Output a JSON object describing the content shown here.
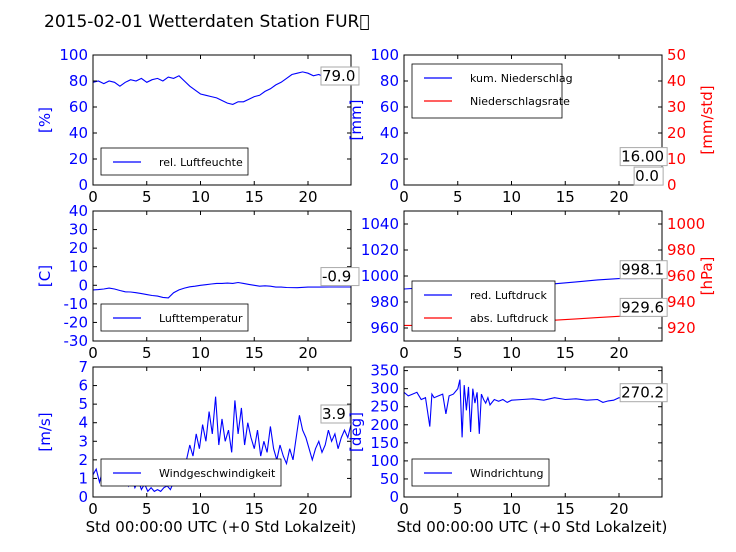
{
  "title": "2015-02-01 Wetterdaten Station FUR\u0000",
  "xlabel": "Std 00:00:00 UTC (+0 Std Lokalzeit)",
  "chart_data": [
    {
      "type": "line",
      "ylabel": "[%]",
      "xlim": [
        0,
        24
      ],
      "ylim": [
        0,
        100
      ],
      "xticks": [
        0,
        5,
        10,
        15,
        20
      ],
      "yticks": [
        0,
        20,
        40,
        60,
        80,
        100
      ],
      "legend": "lower-left",
      "series": [
        {
          "name": "rel. Luftfeuchte",
          "axis": "left",
          "color": "#0000ff",
          "x": [
            0,
            0.5,
            1,
            1.5,
            2,
            2.5,
            3,
            3.5,
            4,
            4.5,
            5,
            5.5,
            6,
            6.5,
            7,
            7.5,
            8,
            8.5,
            9,
            9.5,
            10,
            10.5,
            11,
            11.5,
            12,
            12.5,
            13,
            13.5,
            14,
            14.5,
            15,
            15.5,
            16,
            16.5,
            17,
            17.5,
            18,
            18.5,
            19,
            19.5,
            20,
            20.5,
            21,
            21.5,
            22,
            22.5,
            23,
            23.5,
            24
          ],
          "y": [
            79,
            80,
            78,
            80,
            79,
            76,
            79,
            81,
            80,
            82,
            79,
            81,
            82,
            80,
            83,
            82,
            84,
            80,
            76,
            73,
            70,
            69,
            68,
            67,
            65,
            63,
            62,
            64,
            64,
            66,
            68,
            69,
            72,
            74,
            77,
            79,
            82,
            85,
            86,
            87,
            86,
            84,
            85,
            83,
            82,
            81,
            80,
            79,
            79
          ]
        }
      ],
      "annotations": [
        {
          "text": "79.0",
          "x": 21.3,
          "y": 80
        }
      ]
    },
    {
      "type": "line",
      "ylabel": "[mm]",
      "ylabel_right": "[mm/std]",
      "xlim": [
        0,
        24
      ],
      "ylim": [
        0,
        100
      ],
      "ylim_right": [
        0,
        50
      ],
      "xticks": [
        0,
        5,
        10,
        15,
        20
      ],
      "yticks": [
        0,
        20,
        40,
        60,
        80,
        100
      ],
      "yticks_right": [
        0,
        10,
        20,
        30,
        40,
        50
      ],
      "legend": "top-left",
      "series": [
        {
          "name": "kum. Niederschlag",
          "axis": "left",
          "color": "#0000ff",
          "x": [
            0,
            24
          ],
          "y": [
            0,
            0
          ]
        },
        {
          "name": "Niederschlagsrate",
          "axis": "right",
          "color": "#ff0000",
          "x": [
            0,
            24
          ],
          "y": [
            0,
            0
          ]
        }
      ],
      "annotations": [
        {
          "text": "16.00",
          "x": 20.2,
          "y": 18
        },
        {
          "text": "0.0",
          "x": 21.5,
          "y": 3
        }
      ]
    },
    {
      "type": "line",
      "ylabel": "[C]",
      "xlim": [
        0,
        24
      ],
      "ylim": [
        -30,
        40
      ],
      "xticks": [
        0,
        5,
        10,
        15,
        20
      ],
      "yticks": [
        -30,
        -20,
        -10,
        0,
        10,
        20,
        30,
        40
      ],
      "legend": "lower-left",
      "series": [
        {
          "name": "Lufttemperatur",
          "axis": "left",
          "color": "#0000ff",
          "x": [
            0,
            0.5,
            1,
            1.5,
            2,
            2.5,
            3,
            3.5,
            4,
            4.5,
            5,
            5.5,
            6,
            6.5,
            7,
            7.5,
            8,
            8.5,
            9,
            9.5,
            10,
            10.5,
            11,
            11.5,
            12,
            12.5,
            13,
            13.5,
            14,
            14.5,
            15,
            15.5,
            16,
            16.5,
            17,
            17.5,
            18,
            19,
            20,
            21,
            22,
            23,
            24
          ],
          "y": [
            -2.5,
            -2.3,
            -2,
            -1.5,
            -2,
            -2.8,
            -3.5,
            -3.6,
            -4,
            -4.5,
            -5,
            -5.5,
            -5.8,
            -6.5,
            -6.8,
            -4,
            -2.5,
            -1.5,
            -0.8,
            -0.5,
            0,
            0.3,
            0.7,
            1,
            1,
            1.2,
            1,
            1.5,
            1,
            0.5,
            0,
            -0.5,
            -0.3,
            -0.5,
            -1,
            -1,
            -1.2,
            -1.3,
            -1,
            -1,
            -0.9,
            -0.9,
            -0.9
          ]
        }
      ],
      "annotations": [
        {
          "text": "-0.9",
          "x": 21.3,
          "y": 2
        }
      ]
    },
    {
      "type": "line",
      "ylabel_right": "[hPa]",
      "xlim": [
        0,
        24
      ],
      "ylim": [
        950,
        1050
      ],
      "ylim_right": [
        910,
        1010
      ],
      "xticks": [
        0,
        5,
        10,
        15,
        20
      ],
      "yticks": [
        960,
        980,
        1000,
        1020,
        1040
      ],
      "yticks_right": [
        920,
        940,
        960,
        980,
        1000
      ],
      "legend": "lower-left",
      "series": [
        {
          "name": "red. Luftdruck",
          "axis": "left",
          "color": "#0000ff",
          "x": [
            0,
            2,
            4,
            6,
            8,
            10,
            12,
            14,
            16,
            18,
            20,
            22,
            24
          ],
          "y": [
            990,
            991,
            991,
            992,
            992.5,
            993,
            993.5,
            994,
            995.5,
            997,
            998,
            998.1,
            998.1
          ]
        },
        {
          "name": "abs. Luftdruck",
          "axis": "right",
          "color": "#ff0000",
          "x": [
            0,
            2,
            4,
            6,
            8,
            10,
            12,
            14,
            16,
            18,
            20,
            22,
            24
          ],
          "y": [
            922,
            922,
            922.5,
            923,
            923.5,
            924,
            925,
            926,
            927,
            928,
            929,
            929.5,
            929.6
          ]
        }
      ],
      "annotations": [
        {
          "text": "998.1",
          "x": 20.2,
          "y": 1001
        },
        {
          "text": "929.6",
          "x": 20.2,
          "y": 972
        }
      ]
    },
    {
      "type": "line",
      "ylabel": "[m/s]",
      "xlim": [
        0,
        24
      ],
      "ylim": [
        0,
        7
      ],
      "xticks": [
        0,
        5,
        10,
        15,
        20
      ],
      "yticks": [
        0,
        1,
        2,
        3,
        4,
        5,
        6,
        7
      ],
      "legend": "lower-left",
      "series": [
        {
          "name": "Windgeschwindigkeit",
          "axis": "left",
          "color": "#0000ff",
          "x": [
            0,
            0.3,
            0.6,
            0.9,
            1.2,
            1.5,
            1.8,
            2.1,
            2.4,
            2.7,
            3,
            3.3,
            3.6,
            3.9,
            4.2,
            4.5,
            4.8,
            5.1,
            5.4,
            5.7,
            6,
            6.3,
            6.6,
            6.9,
            7.2,
            7.5,
            7.8,
            8.1,
            8.4,
            8.7,
            9,
            9.3,
            9.6,
            9.9,
            10.2,
            10.5,
            10.8,
            11.1,
            11.4,
            11.7,
            12,
            12.3,
            12.6,
            12.9,
            13.2,
            13.5,
            13.8,
            14.1,
            14.4,
            14.7,
            15,
            15.3,
            15.6,
            15.9,
            16.2,
            16.5,
            16.8,
            17.1,
            17.4,
            17.7,
            18,
            18.3,
            18.6,
            18.9,
            19.2,
            19.5,
            19.8,
            20.1,
            20.4,
            20.7,
            21,
            21.3,
            21.6,
            21.9,
            22.2,
            22.5,
            22.8,
            23.1,
            23.4,
            23.7,
            24
          ],
          "y": [
            1.2,
            1.5,
            0.8,
            1.4,
            1.0,
            1.6,
            1.1,
            0.7,
            1.3,
            0.9,
            1.2,
            0.6,
            1.0,
            0.5,
            0.9,
            0.4,
            0.7,
            0.3,
            0.5,
            0.3,
            0.4,
            0.3,
            0.5,
            0.6,
            0.4,
            0.8,
            1.2,
            1.6,
            1.0,
            2.0,
            2.8,
            2.2,
            3.4,
            2.6,
            3.9,
            3.0,
            4.6,
            3.4,
            5.4,
            2.8,
            4.2,
            3.0,
            3.6,
            2.4,
            5.2,
            3.4,
            4.8,
            2.8,
            4.0,
            3.2,
            2.6,
            3.6,
            2.2,
            3.0,
            2.4,
            3.8,
            2.6,
            2.0,
            2.8,
            2.2,
            1.8,
            2.6,
            2.0,
            3.2,
            4.4,
            3.6,
            3.2,
            2.6,
            2.0,
            2.6,
            3.0,
            2.4,
            2.8,
            3.6,
            3.0,
            3.4,
            2.6,
            3.2,
            3.6,
            3.2,
            3.9
          ]
        }
      ],
      "annotations": [
        {
          "text": "3.9",
          "x": 21.3,
          "y": 4.2
        }
      ]
    },
    {
      "type": "line",
      "ylabel": "[deg]",
      "xlim": [
        0,
        24
      ],
      "ylim": [
        0,
        360
      ],
      "xticks": [
        0,
        5,
        10,
        15,
        20
      ],
      "yticks": [
        0,
        50,
        100,
        150,
        200,
        250,
        300,
        350
      ],
      "legend": "lower-left",
      "series": [
        {
          "name": "Windrichtung",
          "axis": "left",
          "color": "#0000ff",
          "x": [
            0,
            0.4,
            0.8,
            1.2,
            1.6,
            2.0,
            2.4,
            2.6,
            2.8,
            3.2,
            3.6,
            3.9,
            4.2,
            4.6,
            5.0,
            5.2,
            5.4,
            5.6,
            5.8,
            6.0,
            6.2,
            6.4,
            6.6,
            6.8,
            7.0,
            7.2,
            7.4,
            7.6,
            7.8,
            8.0,
            8.4,
            8.8,
            9.2,
            9.6,
            10,
            11,
            12,
            13,
            14,
            15,
            16,
            17,
            18,
            18.5,
            19,
            19.5,
            20,
            21,
            22,
            23,
            24
          ],
          "y": [
            290,
            280,
            285,
            290,
            270,
            275,
            195,
            285,
            275,
            280,
            285,
            230,
            280,
            285,
            300,
            325,
            165,
            310,
            240,
            305,
            180,
            300,
            260,
            290,
            175,
            285,
            270,
            260,
            275,
            255,
            270,
            265,
            270,
            262,
            268,
            270,
            272,
            268,
            275,
            270,
            272,
            268,
            270,
            262,
            266,
            268,
            275,
            272,
            270,
            270,
            270
          ]
        }
      ],
      "annotations": [
        {
          "text": "270.2",
          "x": 20.2,
          "y": 275
        }
      ]
    }
  ]
}
